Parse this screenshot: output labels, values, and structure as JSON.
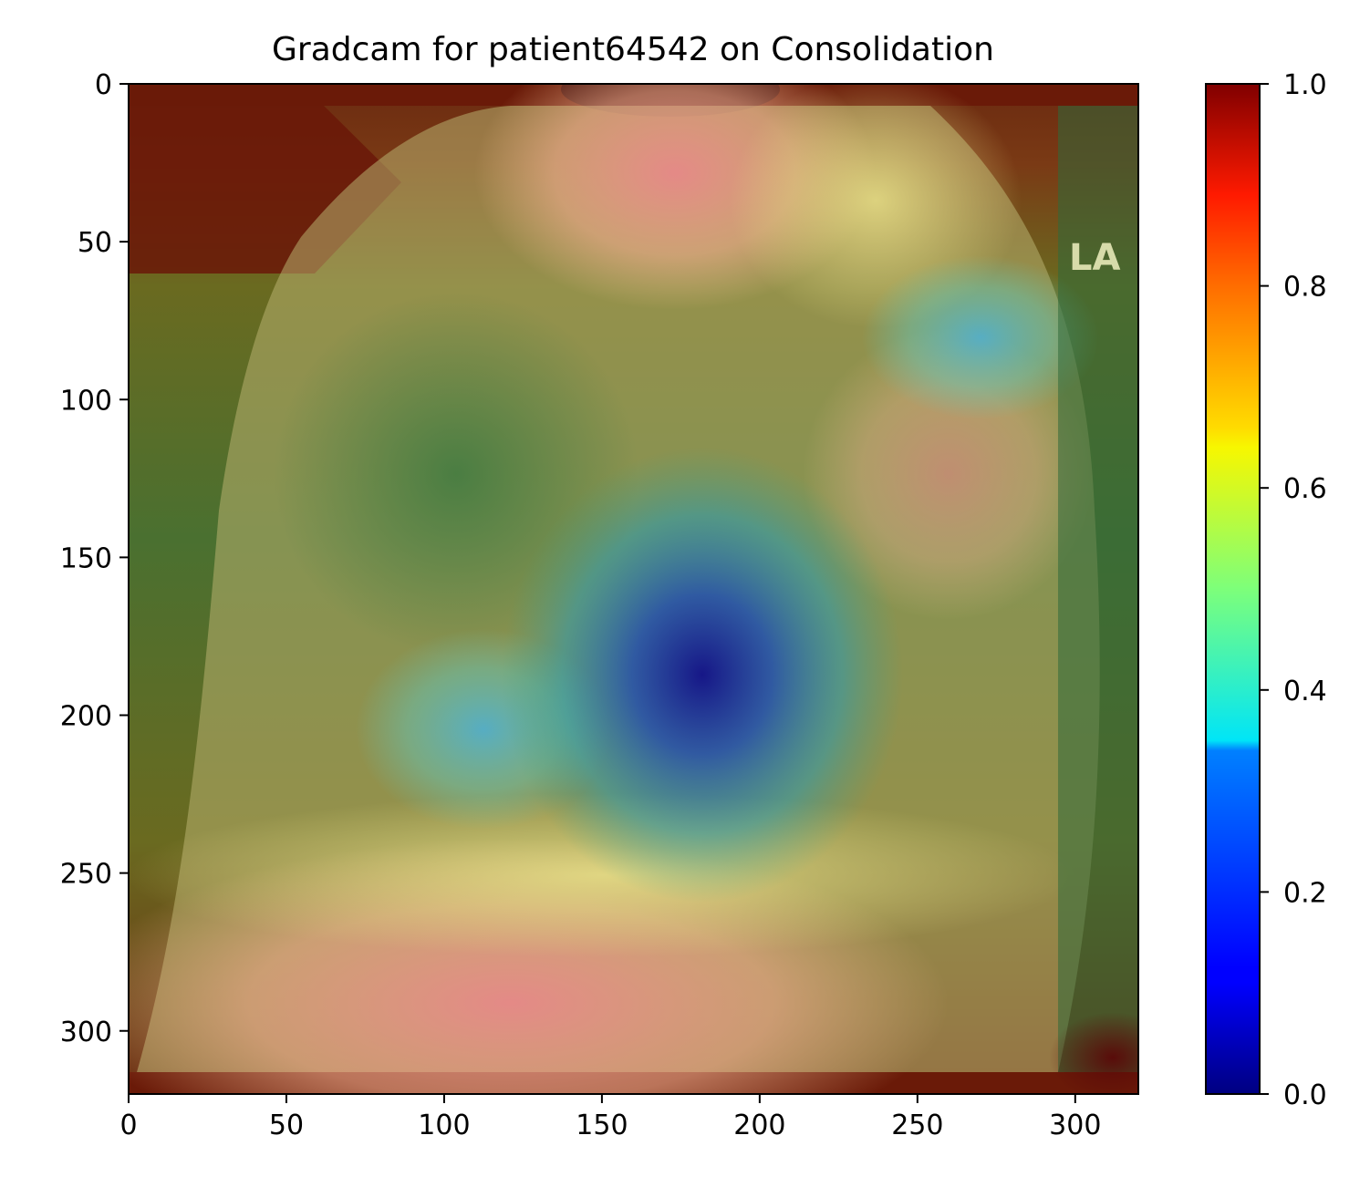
{
  "chart_data": [
    {
      "type": "heatmap",
      "title": "Gradcam for patient64542 on Consolidation",
      "xlabel": "",
      "ylabel": "",
      "xlim": [
        0,
        320
      ],
      "ylim": [
        320,
        0
      ],
      "x_ticks": [
        0,
        50,
        100,
        150,
        200,
        250,
        300
      ],
      "y_ticks": [
        0,
        50,
        100,
        150,
        200,
        250,
        300
      ],
      "colormap": "jet",
      "grid": false,
      "image": "chest X-ray, lateral view, with Grad-CAM heatmap overlay",
      "image_marker_text": "LA",
      "heat_blobs": [
        {
          "x": 180,
          "y": 185,
          "value": 0.05
        },
        {
          "x": 112,
          "y": 205,
          "value": 0.28
        },
        {
          "x": 275,
          "y": 80,
          "value": 0.38
        },
        {
          "x": 165,
          "y": 0,
          "value": 1.0
        },
        {
          "x": 0,
          "y": 25,
          "value": 0.95
        },
        {
          "x": 75,
          "y": 320,
          "value": 1.0
        },
        {
          "x": 315,
          "y": 315,
          "value": 1.0
        }
      ]
    },
    {
      "type": "colorbar",
      "colormap": "jet",
      "range": [
        0.0,
        1.0
      ],
      "ticks": [
        0.0,
        0.2,
        0.4,
        0.6,
        0.8,
        1.0
      ],
      "tick_labels": [
        "0.0",
        "0.2",
        "0.4",
        "0.6",
        "0.8",
        "1.0"
      ]
    }
  ]
}
